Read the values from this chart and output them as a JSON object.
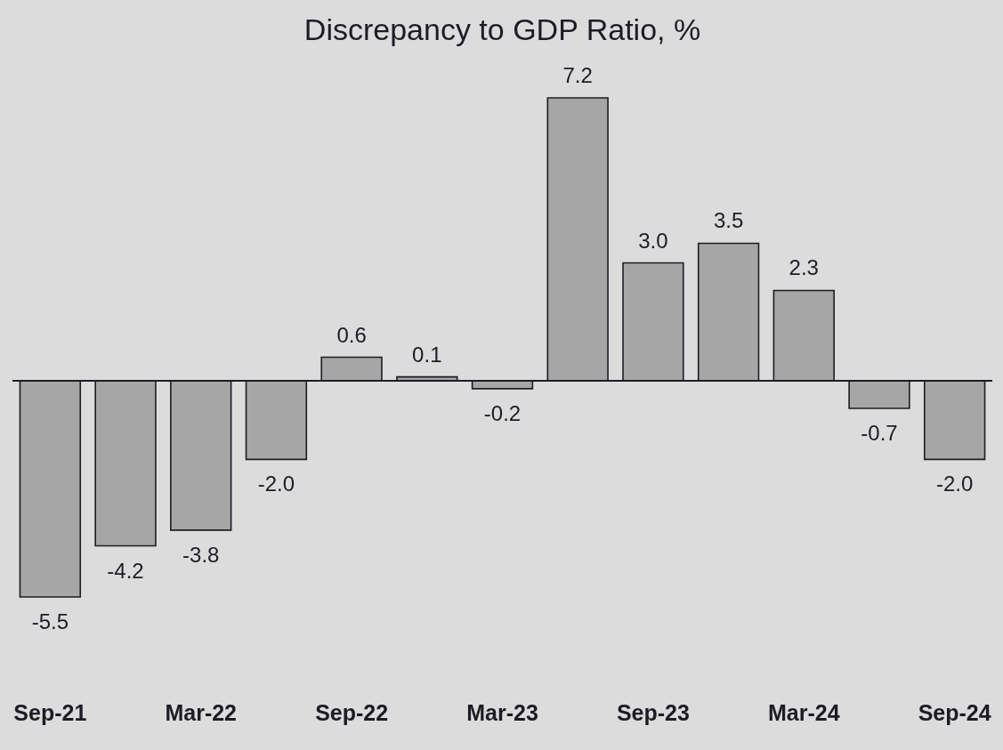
{
  "chart_data": {
    "type": "bar",
    "title": "Discrepancy to GDP Ratio, %",
    "categories": [
      "Sep-21",
      null,
      "Mar-22",
      null,
      "Sep-22",
      null,
      "Mar-23",
      null,
      "Sep-23",
      null,
      "Mar-24",
      null,
      "Sep-24"
    ],
    "values": [
      -5.5,
      -4.2,
      -3.8,
      -2.0,
      0.6,
      0.1,
      -0.2,
      7.2,
      3.0,
      3.5,
      2.3,
      -0.7,
      -2.0
    ],
    "value_labels": [
      "-5.5",
      "-4.2",
      "-3.8",
      "-2.0",
      "0.6",
      "0.1",
      "-0.2",
      "7.2",
      "3.0",
      "3.5",
      "2.3",
      "-0.7",
      "-2.0"
    ],
    "color": "#a6a6a6",
    "tick_labels": "x"
  }
}
